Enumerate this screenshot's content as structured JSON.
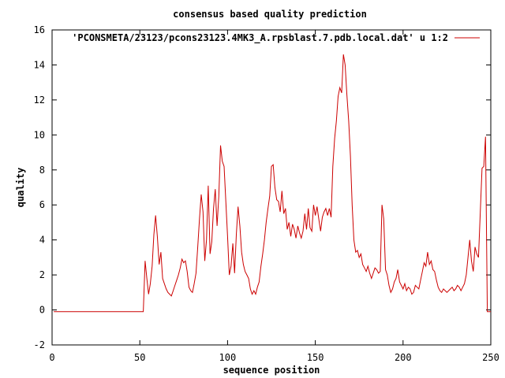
{
  "chart_data": {
    "type": "line",
    "title": "consensus based quality prediction",
    "xlabel": "sequence position",
    "ylabel": "quality",
    "xlim": [
      0,
      250
    ],
    "ylim": [
      -2,
      16
    ],
    "xticks": [
      0,
      50,
      100,
      150,
      200,
      250
    ],
    "yticks": [
      -2,
      0,
      2,
      4,
      6,
      8,
      10,
      12,
      14,
      16
    ],
    "grid": false,
    "legend_position": "top-right",
    "series": [
      {
        "name": "'PCONSMETA/23123/pcons23123.4MK3_A.rpsblast.7.pdb.local.dat' u 1:2",
        "color": "#cc0000",
        "points": [
          [
            1,
            -0.1
          ],
          [
            52,
            -0.1
          ],
          [
            53,
            2.8
          ],
          [
            54,
            1.8
          ],
          [
            55,
            0.9
          ],
          [
            56,
            1.5
          ],
          [
            57,
            2.5
          ],
          [
            58,
            4.3
          ],
          [
            59,
            5.4
          ],
          [
            60,
            4.2
          ],
          [
            61,
            2.6
          ],
          [
            62,
            3.3
          ],
          [
            63,
            1.8
          ],
          [
            64,
            1.5
          ],
          [
            65,
            1.2
          ],
          [
            66,
            1.0
          ],
          [
            67,
            0.9
          ],
          [
            68,
            0.8
          ],
          [
            69,
            1.1
          ],
          [
            70,
            1.4
          ],
          [
            71,
            1.7
          ],
          [
            72,
            2.0
          ],
          [
            73,
            2.4
          ],
          [
            74,
            2.9
          ],
          [
            75,
            2.7
          ],
          [
            76,
            2.8
          ],
          [
            77,
            2.2
          ],
          [
            78,
            1.3
          ],
          [
            79,
            1.1
          ],
          [
            80,
            1.0
          ],
          [
            81,
            1.5
          ],
          [
            82,
            2.1
          ],
          [
            83,
            3.6
          ],
          [
            84,
            5.2
          ],
          [
            85,
            6.6
          ],
          [
            86,
            5.6
          ],
          [
            87,
            2.8
          ],
          [
            88,
            4.0
          ],
          [
            89,
            7.1
          ],
          [
            90,
            3.2
          ],
          [
            91,
            3.9
          ],
          [
            92,
            5.8
          ],
          [
            93,
            6.9
          ],
          [
            94,
            4.8
          ],
          [
            95,
            6.5
          ],
          [
            96,
            9.4
          ],
          [
            97,
            8.5
          ],
          [
            98,
            8.2
          ],
          [
            99,
            6.2
          ],
          [
            100,
            4.2
          ],
          [
            101,
            2.0
          ],
          [
            102,
            2.5
          ],
          [
            103,
            3.8
          ],
          [
            104,
            2.1
          ],
          [
            105,
            4.3
          ],
          [
            106,
            5.9
          ],
          [
            107,
            4.8
          ],
          [
            108,
            3.3
          ],
          [
            109,
            2.6
          ],
          [
            110,
            2.2
          ],
          [
            111,
            2.0
          ],
          [
            112,
            1.8
          ],
          [
            113,
            1.2
          ],
          [
            114,
            0.9
          ],
          [
            115,
            1.1
          ],
          [
            116,
            0.9
          ],
          [
            117,
            1.3
          ],
          [
            118,
            1.6
          ],
          [
            119,
            2.5
          ],
          [
            120,
            3.2
          ],
          [
            121,
            4.0
          ],
          [
            122,
            5.0
          ],
          [
            123,
            5.8
          ],
          [
            124,
            6.5
          ],
          [
            125,
            8.2
          ],
          [
            126,
            8.3
          ],
          [
            127,
            7.0
          ],
          [
            128,
            6.3
          ],
          [
            129,
            6.2
          ],
          [
            130,
            5.6
          ],
          [
            131,
            6.8
          ],
          [
            132,
            5.5
          ],
          [
            133,
            5.8
          ],
          [
            134,
            4.6
          ],
          [
            135,
            5.0
          ],
          [
            136,
            4.2
          ],
          [
            137,
            4.9
          ],
          [
            138,
            4.6
          ],
          [
            139,
            4.1
          ],
          [
            140,
            4.8
          ],
          [
            141,
            4.4
          ],
          [
            142,
            4.1
          ],
          [
            143,
            4.5
          ],
          [
            144,
            5.5
          ],
          [
            145,
            4.6
          ],
          [
            146,
            5.8
          ],
          [
            147,
            4.7
          ],
          [
            148,
            4.5
          ],
          [
            149,
            6.0
          ],
          [
            150,
            5.4
          ],
          [
            151,
            5.9
          ],
          [
            152,
            5.2
          ],
          [
            153,
            4.5
          ],
          [
            154,
            5.3
          ],
          [
            155,
            5.6
          ],
          [
            156,
            5.8
          ],
          [
            157,
            5.4
          ],
          [
            158,
            5.8
          ],
          [
            159,
            5.3
          ],
          [
            160,
            8.2
          ],
          [
            161,
            9.8
          ],
          [
            162,
            10.8
          ],
          [
            163,
            12.2
          ],
          [
            164,
            12.7
          ],
          [
            165,
            12.4
          ],
          [
            166,
            14.6
          ],
          [
            167,
            14.0
          ],
          [
            168,
            12.3
          ],
          [
            169,
            10.8
          ],
          [
            170,
            8.8
          ],
          [
            171,
            6.0
          ],
          [
            172,
            4.0
          ],
          [
            173,
            3.3
          ],
          [
            174,
            3.4
          ],
          [
            175,
            3.0
          ],
          [
            176,
            3.2
          ],
          [
            177,
            2.6
          ],
          [
            178,
            2.4
          ],
          [
            179,
            2.2
          ],
          [
            180,
            2.5
          ],
          [
            181,
            2.1
          ],
          [
            182,
            1.8
          ],
          [
            183,
            2.1
          ],
          [
            184,
            2.4
          ],
          [
            185,
            2.3
          ],
          [
            186,
            2.1
          ],
          [
            187,
            2.2
          ],
          [
            188,
            6.0
          ],
          [
            189,
            5.2
          ],
          [
            190,
            2.3
          ],
          [
            191,
            2.0
          ],
          [
            192,
            1.4
          ],
          [
            193,
            1.0
          ],
          [
            194,
            1.2
          ],
          [
            195,
            1.6
          ],
          [
            196,
            1.8
          ],
          [
            197,
            2.3
          ],
          [
            198,
            1.6
          ],
          [
            199,
            1.4
          ],
          [
            200,
            1.2
          ],
          [
            201,
            1.5
          ],
          [
            202,
            1.1
          ],
          [
            203,
            1.3
          ],
          [
            204,
            1.2
          ],
          [
            205,
            0.9
          ],
          [
            206,
            1.0
          ],
          [
            207,
            1.4
          ],
          [
            208,
            1.3
          ],
          [
            209,
            1.2
          ],
          [
            210,
            1.7
          ],
          [
            211,
            2.2
          ],
          [
            212,
            2.7
          ],
          [
            213,
            2.5
          ],
          [
            214,
            3.3
          ],
          [
            215,
            2.6
          ],
          [
            216,
            2.8
          ],
          [
            217,
            2.3
          ],
          [
            218,
            2.2
          ],
          [
            219,
            1.7
          ],
          [
            220,
            1.3
          ],
          [
            221,
            1.1
          ],
          [
            222,
            1.0
          ],
          [
            223,
            1.2
          ],
          [
            224,
            1.1
          ],
          [
            225,
            1.0
          ],
          [
            226,
            1.1
          ],
          [
            227,
            1.2
          ],
          [
            228,
            1.3
          ],
          [
            229,
            1.1
          ],
          [
            230,
            1.2
          ],
          [
            231,
            1.4
          ],
          [
            232,
            1.3
          ],
          [
            233,
            1.1
          ],
          [
            234,
            1.3
          ],
          [
            235,
            1.5
          ],
          [
            236,
            2.0
          ],
          [
            237,
            3.0
          ],
          [
            238,
            4.0
          ],
          [
            239,
            2.8
          ],
          [
            240,
            2.2
          ],
          [
            241,
            3.6
          ],
          [
            242,
            3.2
          ],
          [
            243,
            3.0
          ],
          [
            244,
            5.6
          ],
          [
            245,
            8.1
          ],
          [
            246,
            8.2
          ],
          [
            247,
            9.9
          ],
          [
            248,
            -0.1
          ],
          [
            250,
            -0.1
          ]
        ]
      }
    ]
  }
}
